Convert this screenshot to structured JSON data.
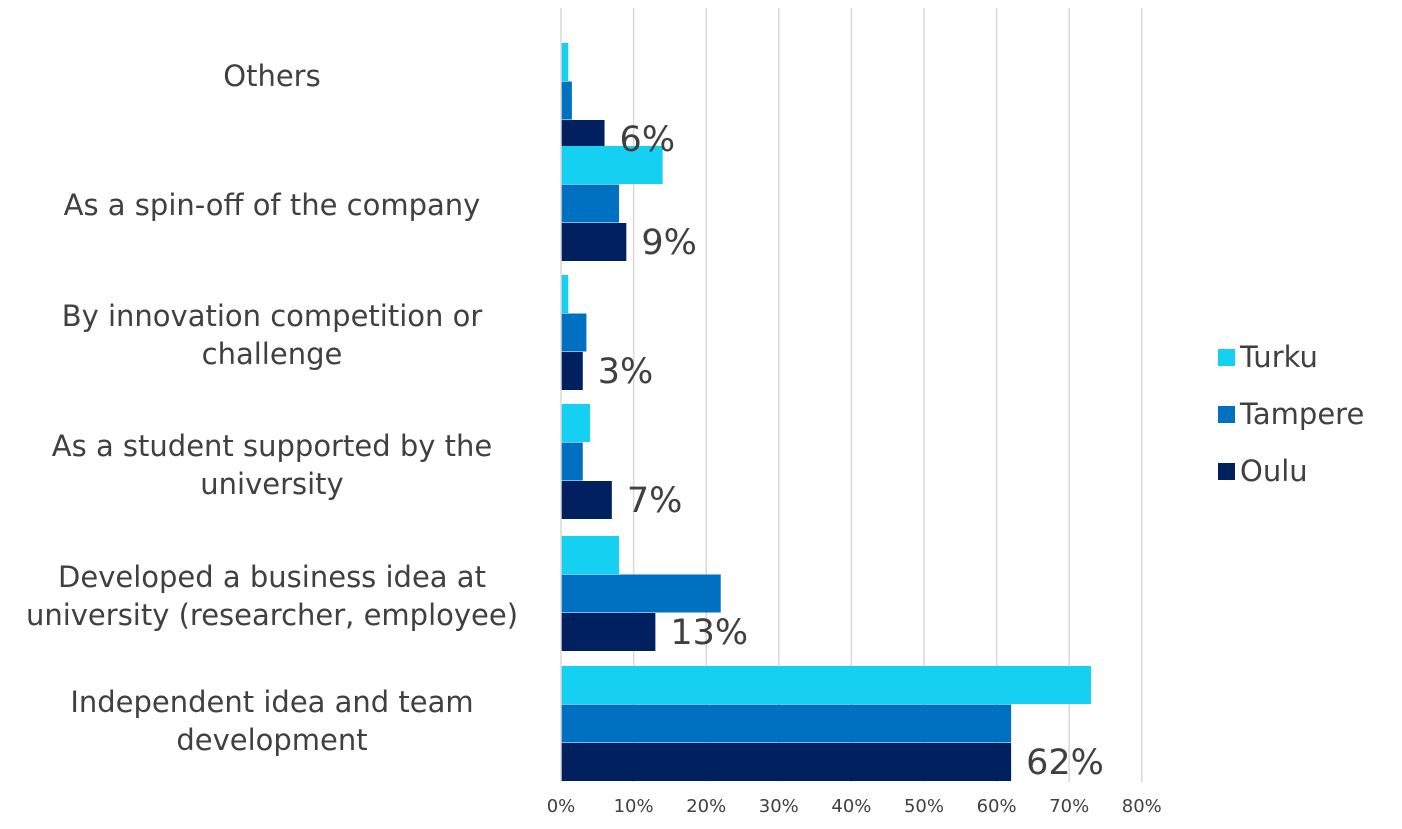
{
  "chart_data": {
    "type": "bar",
    "orientation": "horizontal",
    "categories": [
      "Others",
      "As a spin-off of the company",
      "By innovation competition or challenge",
      "As a student supported by the university",
      "Developed a business idea at university (researcher, employee)",
      "Independent idea and team development"
    ],
    "category_lines": [
      [
        "Others"
      ],
      [
        "As a spin-off of the company"
      ],
      [
        "By innovation competition or",
        "challenge"
      ],
      [
        "As a student supported by the",
        "university"
      ],
      [
        "Developed a business idea at",
        "university (researcher, employee)"
      ],
      [
        "Independent idea and team",
        "development"
      ]
    ],
    "series": [
      {
        "name": "Turku",
        "color": "#15d0f0",
        "values": [
          1,
          14,
          1,
          4,
          8,
          73
        ]
      },
      {
        "name": "Tampere",
        "color": "#0070c0",
        "values": [
          1.5,
          8,
          3.5,
          3,
          22,
          62
        ]
      },
      {
        "name": "Oulu",
        "color": "#002060",
        "values": [
          6,
          9,
          3,
          7,
          13,
          62
        ]
      }
    ],
    "data_labels": [
      "6%",
      "9%",
      "3%",
      "7%",
      "13%",
      "62%"
    ],
    "xlim": [
      0,
      80
    ],
    "xticks": [
      "0%",
      "10%",
      "20%",
      "30%",
      "40%",
      "50%",
      "60%",
      "70%",
      "80%"
    ],
    "xtick_values": [
      0,
      10,
      20,
      30,
      40,
      50,
      60,
      70,
      80
    ],
    "grid": true,
    "legend_placement": "right"
  }
}
